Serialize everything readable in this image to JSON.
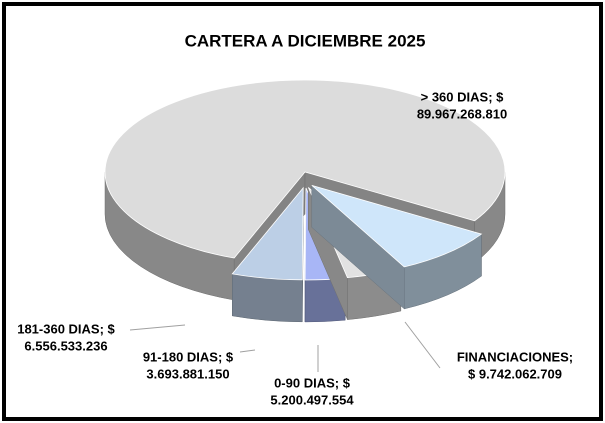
{
  "chart_data": {
    "type": "pie",
    "title": "CARTERA A DICIEMBRE 2025",
    "values": [
      89967268810,
      9742062709,
      5200497554,
      3693881150,
      6556533236
    ],
    "value_labels": [
      [
        "> 360 DIAS; $",
        "89.967.268.810"
      ],
      [
        "FINANCIACIONES;",
        "$ 9.742.062.709"
      ],
      [
        "0-90 DIAS; $",
        "5.200.497.554"
      ],
      [
        "91-180 DIAS; $",
        "3.693.881.150"
      ],
      [
        "181-360 DIAS; $",
        "6.556.533.236"
      ]
    ],
    "colors": [
      "#dcdcdc",
      "#cfe6fa",
      "#e2e2e2",
      "#a8b6f6",
      "#bccfe6"
    ]
  }
}
